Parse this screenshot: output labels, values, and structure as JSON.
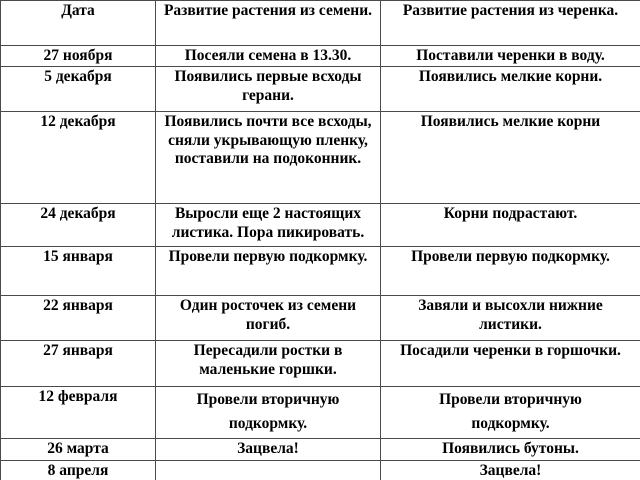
{
  "colors": {
    "text": "#000000",
    "border": "#4a4a4a",
    "background": "#ffffff"
  },
  "table": {
    "columns": [
      "Дата",
      "Развитие растения из семени.",
      "Развитие растения из черенка."
    ],
    "rows": [
      {
        "date": "27 ноября",
        "seed": "Посеяли семена в 13.30.",
        "cutting": "Поставили черенки в воду."
      },
      {
        "date": "5 декабря",
        "seed": "Появились первые всходы\nгерани.",
        "cutting": "Появились мелкие корни."
      },
      {
        "date": "12 декабря",
        "seed": "Появились почти все всходы,\nсняли укрывающую пленку,\nпоставили на подоконник.",
        "cutting": "Появились мелкие корни"
      },
      {
        "date": "24 декабря",
        "seed": "Выросли еще 2 настоящих\nлистика. Пора пикировать.",
        "cutting": "Корни подрастают."
      },
      {
        "date": "15 января",
        "seed": "Провели первую подкормку.",
        "cutting": "Провели первую подкормку."
      },
      {
        "date": "22 января",
        "seed": "Один росточек из семени\nпогиб.",
        "cutting": "Завяли и высохли нижние\nлистики."
      },
      {
        "date": "27 января",
        "seed": "Пересадили ростки в\nмаленькие горшки.",
        "cutting": "Посадили черенки в горшочки."
      },
      {
        "date": "12 февраля",
        "seed": "Провели вторичную\nподкормку.",
        "cutting": "Провели вторичную\nподкормку."
      },
      {
        "date": "26 марта",
        "seed": "Зацвела!",
        "cutting": "Появились бутоны."
      },
      {
        "date": "8 апреля",
        "seed": "",
        "cutting": "Зацвела!"
      }
    ]
  }
}
